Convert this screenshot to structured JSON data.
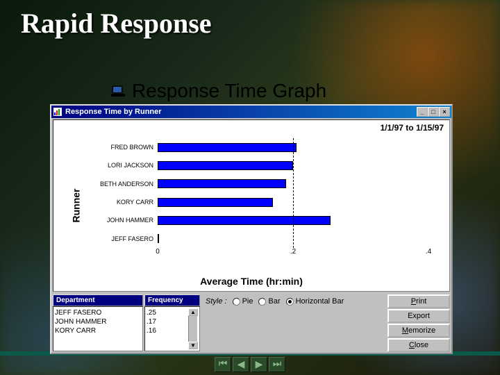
{
  "slide": {
    "title": "Rapid Response",
    "subtitle": "Response Time Graph"
  },
  "window": {
    "title": "Response Time by Runner",
    "date_range": "1/1/97 to 1/15/97"
  },
  "chart": {
    "type": "horizontal-bar",
    "y_axis_label": "Runner",
    "x_axis_label": "Average Time (hr:min)",
    "xlim": [
      0,
      0.4
    ],
    "x_ticks": [
      0,
      0.2,
      0.4
    ],
    "x_tick_labels": [
      "0",
      ".2",
      ".4"
    ],
    "reference_line_x": 0.2,
    "bar_color": "#0000ff",
    "bar_border": "#000000",
    "background_color": "#ffffff",
    "label_fontsize": 9,
    "axis_title_fontsize": 14,
    "categories": [
      "FRED BROWN",
      "LORI JACKSON",
      "BETH ANDERSON",
      "KORY CARR",
      "JOHN HAMMER",
      "JEFF FASERO"
    ],
    "values": [
      0.205,
      0.2,
      0.19,
      0.17,
      0.255,
      0.002
    ]
  },
  "bottom": {
    "department_header": "Department",
    "frequency_header": "Frequency",
    "department_rows": [
      {
        "name": "JEFF FASERO",
        "freq": ".25"
      },
      {
        "name": "JOHN HAMMER",
        "freq": ".17"
      },
      {
        "name": "KORY CARR",
        "freq": ".16"
      }
    ],
    "style_label": "Style :",
    "style_options": [
      {
        "label": "Pie",
        "selected": false
      },
      {
        "label": "Bar",
        "selected": false
      },
      {
        "label": "Horizontal Bar",
        "selected": true
      }
    ],
    "buttons": {
      "print": "Print",
      "export": "Export",
      "memorize": "Memorize",
      "close": "Close"
    }
  },
  "colors": {
    "titlebar_start": "#000080",
    "titlebar_end": "#1084d0",
    "win_face": "#c0c0c0",
    "slide_title_color": "#ffffff"
  }
}
